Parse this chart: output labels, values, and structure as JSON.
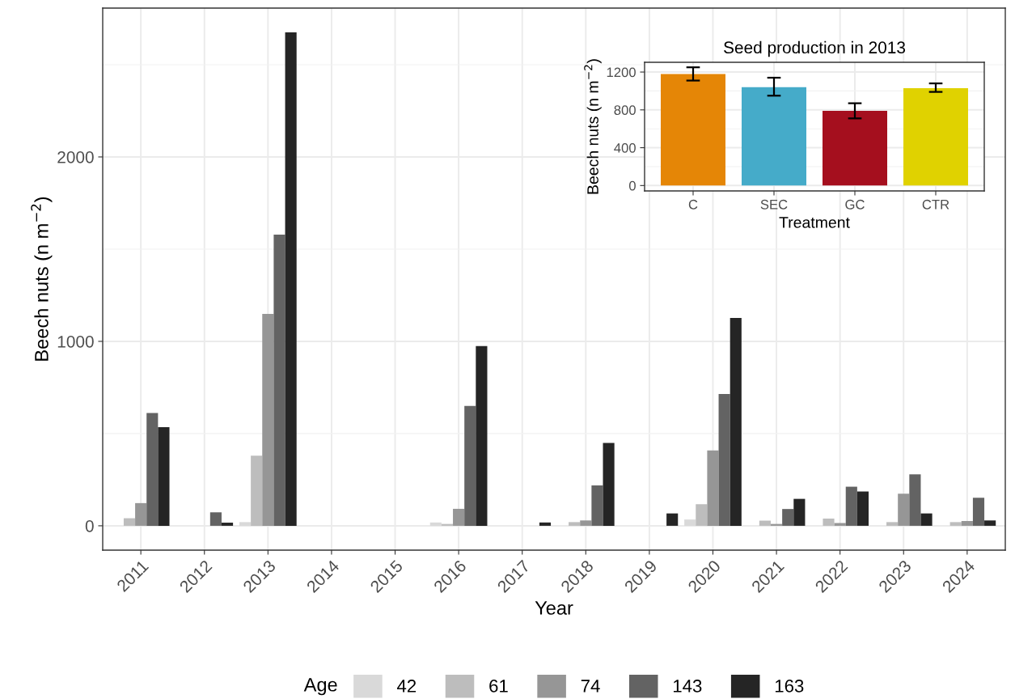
{
  "chart_data": [
    {
      "type": "bar",
      "xlabel": "Year",
      "ylabel": "Beech nuts (n m$^{−2}$)",
      "legend_title": "Age",
      "legend": "bottom",
      "grid": true,
      "categories": [
        "2011",
        "2012",
        "2013",
        "2014",
        "2015",
        "2016",
        "2017",
        "2018",
        "2019",
        "2020",
        "2021",
        "2022",
        "2023",
        "2024"
      ],
      "ylim": [
        -132,
        2807
      ],
      "yticks": [
        0,
        {
          "value": 500,
          "label": null
        },
        1000,
        {
          "value": 1500,
          "label": null
        },
        2000,
        {
          "value": 2500,
          "label": null
        }
      ],
      "series": [
        {
          "name": "42",
          "color": "#d9d9d9",
          "values": [
            0,
            0,
            20,
            0,
            0,
            18,
            0,
            0,
            0,
            34,
            0,
            0,
            0,
            0
          ]
        },
        {
          "name": "61",
          "color": "#bdbdbd",
          "values": [
            41,
            0,
            380,
            0,
            0,
            10,
            0,
            20,
            0,
            117,
            28,
            39,
            20,
            20
          ]
        },
        {
          "name": "74",
          "color": "#969696",
          "values": [
            123,
            0,
            1149,
            0,
            0,
            92,
            0,
            29,
            0,
            409,
            10,
            15,
            174,
            26
          ]
        },
        {
          "name": "143",
          "color": "#636363",
          "values": [
            611,
            73,
            1579,
            0,
            0,
            650,
            0,
            219,
            0,
            715,
            91,
            212,
            279,
            152
          ]
        },
        {
          "name": "163",
          "color": "#252525",
          "values": [
            535,
            17,
            2675,
            0,
            0,
            974,
            18,
            449,
            67,
            1127,
            146,
            186,
            67,
            29
          ]
        }
      ]
    },
    {
      "type": "bar",
      "title": "Seed production in 2013",
      "xlabel": "Treatment",
      "ylabel": "Beech nuts (n m$^{−2}$)",
      "grid": true,
      "categories": [
        "C",
        "SEC",
        "GC",
        "CTR"
      ],
      "values": [
        1180,
        1040,
        790,
        1030
      ],
      "colors": [
        "#e58606",
        "#45abc9",
        "#a50f1e",
        "#e0d200"
      ],
      "errors": [
        [
          1110,
          1250
        ],
        [
          950,
          1140
        ],
        [
          710,
          870
        ],
        [
          990,
          1080
        ]
      ],
      "ylim": [
        -57,
        1303
      ],
      "yticks": [
        0,
        {
          "value": 200,
          "label": null
        },
        400,
        {
          "value": 600,
          "label": null
        },
        800,
        {
          "value": 1000,
          "label": null
        },
        1200
      ]
    }
  ]
}
